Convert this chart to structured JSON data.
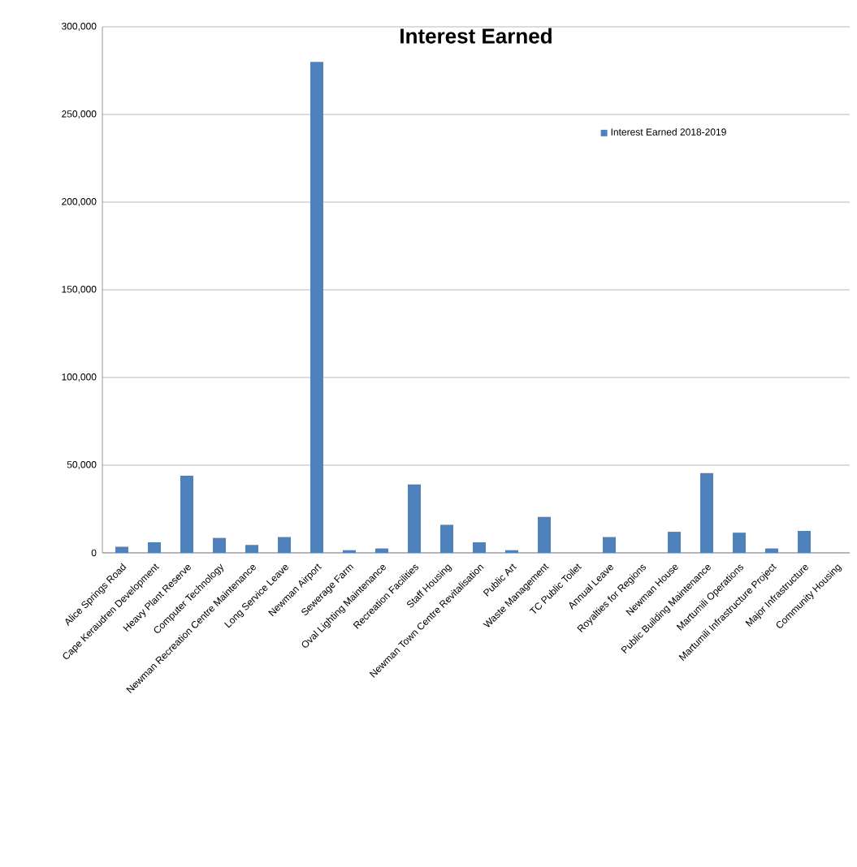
{
  "chart_data": {
    "type": "bar",
    "title": "Interest Earned",
    "categories": [
      "Alice Springs Road",
      "Cape Keraudren Development",
      "Heavy Plant Reserve",
      "Computer Technology",
      "Newman Recreation Centre Maintenance",
      "Long Service Leave",
      "Newman Airport",
      "Sewerage Farm",
      "Oval Lighting Maintenance",
      "Recreation Facilities",
      "Staff Housing",
      "Newman Town Centre Revitalisation",
      "Public Art",
      "Waste Management",
      "TC Public Toilet",
      "Annual Leave",
      "Royalties for Regions",
      "Newman House",
      "Public Building Maintenance",
      "Martumili Operations",
      "Martumili Infrastructure Project",
      "Major Infrastructure",
      "Community Housing"
    ],
    "series": [
      {
        "name": "Interest Earned 2018-2019",
        "color": "#4f81bd",
        "values": [
          3500,
          6000,
          44000,
          8500,
          4500,
          9000,
          280000,
          1500,
          2500,
          39000,
          16000,
          6000,
          1500,
          20500,
          0,
          9000,
          0,
          12000,
          45500,
          11500,
          2500,
          12500,
          0
        ]
      }
    ],
    "ylim": [
      0,
      300000
    ],
    "yticks": [
      {
        "value": 0,
        "label": "0"
      },
      {
        "value": 50000,
        "label": "50,000"
      },
      {
        "value": 100000,
        "label": "100,000"
      },
      {
        "value": 150000,
        "label": "150,000"
      },
      {
        "value": 200000,
        "label": "200,000"
      },
      {
        "value": 250000,
        "label": "250,000"
      },
      {
        "value": 300000,
        "label": "300,000"
      }
    ],
    "grid": "y",
    "legend": "top right"
  }
}
